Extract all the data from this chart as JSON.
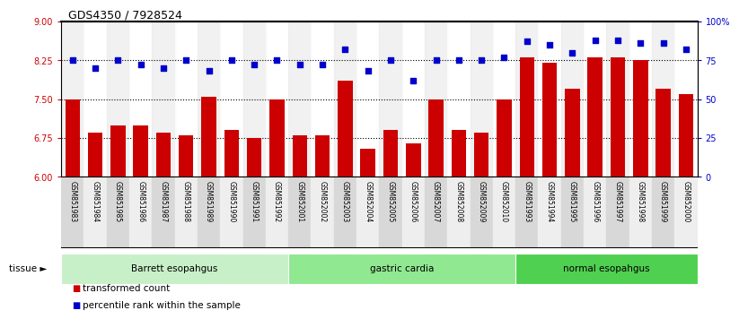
{
  "title": "GDS4350 / 7928524",
  "samples": [
    "GSM851983",
    "GSM851984",
    "GSM851985",
    "GSM851986",
    "GSM851987",
    "GSM851988",
    "GSM851989",
    "GSM851990",
    "GSM851991",
    "GSM851992",
    "GSM852001",
    "GSM852002",
    "GSM852003",
    "GSM852004",
    "GSM852005",
    "GSM852006",
    "GSM852007",
    "GSM852008",
    "GSM852009",
    "GSM852010",
    "GSM851993",
    "GSM851994",
    "GSM851995",
    "GSM851996",
    "GSM851997",
    "GSM851998",
    "GSM851999",
    "GSM852000"
  ],
  "bar_values": [
    7.5,
    6.85,
    7.0,
    7.0,
    6.85,
    6.8,
    7.55,
    6.9,
    6.75,
    7.5,
    6.8,
    6.8,
    7.85,
    6.55,
    6.9,
    6.65,
    7.5,
    6.9,
    6.85,
    7.5,
    8.3,
    8.2,
    7.7,
    8.3,
    8.3,
    8.25,
    7.7,
    7.6
  ],
  "dot_values": [
    75,
    70,
    75,
    72,
    70,
    75,
    68,
    75,
    72,
    75,
    72,
    72,
    82,
    68,
    75,
    62,
    75,
    75,
    75,
    77,
    87,
    85,
    80,
    88,
    88,
    86,
    86,
    82
  ],
  "groups": [
    {
      "label": "Barrett esopahgus",
      "start": 0,
      "end": 10,
      "color": "#c8f0c8"
    },
    {
      "label": "gastric cardia",
      "start": 10,
      "end": 20,
      "color": "#90e890"
    },
    {
      "label": "normal esopahgus",
      "start": 20,
      "end": 28,
      "color": "#50d050"
    }
  ],
  "bar_color": "#cc0000",
  "dot_color": "#0000cc",
  "ylim_left": [
    6,
    9
  ],
  "ylim_right": [
    0,
    100
  ],
  "yticks_left": [
    6,
    6.75,
    7.5,
    8.25,
    9
  ],
  "yticks_right": [
    0,
    25,
    50,
    75,
    100
  ],
  "ytick_labels_right": [
    "0",
    "25",
    "50",
    "75",
    "100%"
  ],
  "hlines": [
    6.75,
    7.5,
    8.25
  ],
  "legend_items": [
    {
      "label": "transformed count",
      "color": "#cc0000"
    },
    {
      "label": "percentile rank within the sample",
      "color": "#0000cc"
    }
  ],
  "tissue_label": "tissue"
}
